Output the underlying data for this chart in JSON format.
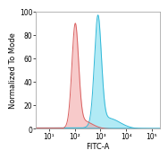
{
  "title": "",
  "xlabel": "FITC-A",
  "ylabel": "Normalized To Mode",
  "xlim_log": [
    0.5,
    5.3
  ],
  "ylim": [
    0,
    100
  ],
  "yticks": [
    0,
    20,
    40,
    60,
    80,
    100
  ],
  "xtick_positions": [
    1,
    2,
    3,
    4,
    5
  ],
  "xtick_labels": [
    "10¹",
    "10²",
    "10³",
    "10⁴",
    "10⁵"
  ],
  "red_peak_log_mean": 2.02,
  "red_peak_log_std": 0.13,
  "blue_peak_log_mean": 2.9,
  "blue_peak_log_std": 0.135,
  "red_peak_height": 90,
  "blue_peak_height": 97,
  "red_fill_color": "#f2a0a0",
  "red_line_color": "#d96060",
  "blue_fill_color": "#7ddcef",
  "blue_line_color": "#30b8d8",
  "bg_color": "#ffffff",
  "axes_bg_color": "#ffffff",
  "border_color": "#aaaaaa",
  "baseline_color": "#30b8d8",
  "label_fontsize": 6,
  "tick_fontsize": 5.5,
  "red_alpha": 0.55,
  "blue_alpha": 0.6
}
